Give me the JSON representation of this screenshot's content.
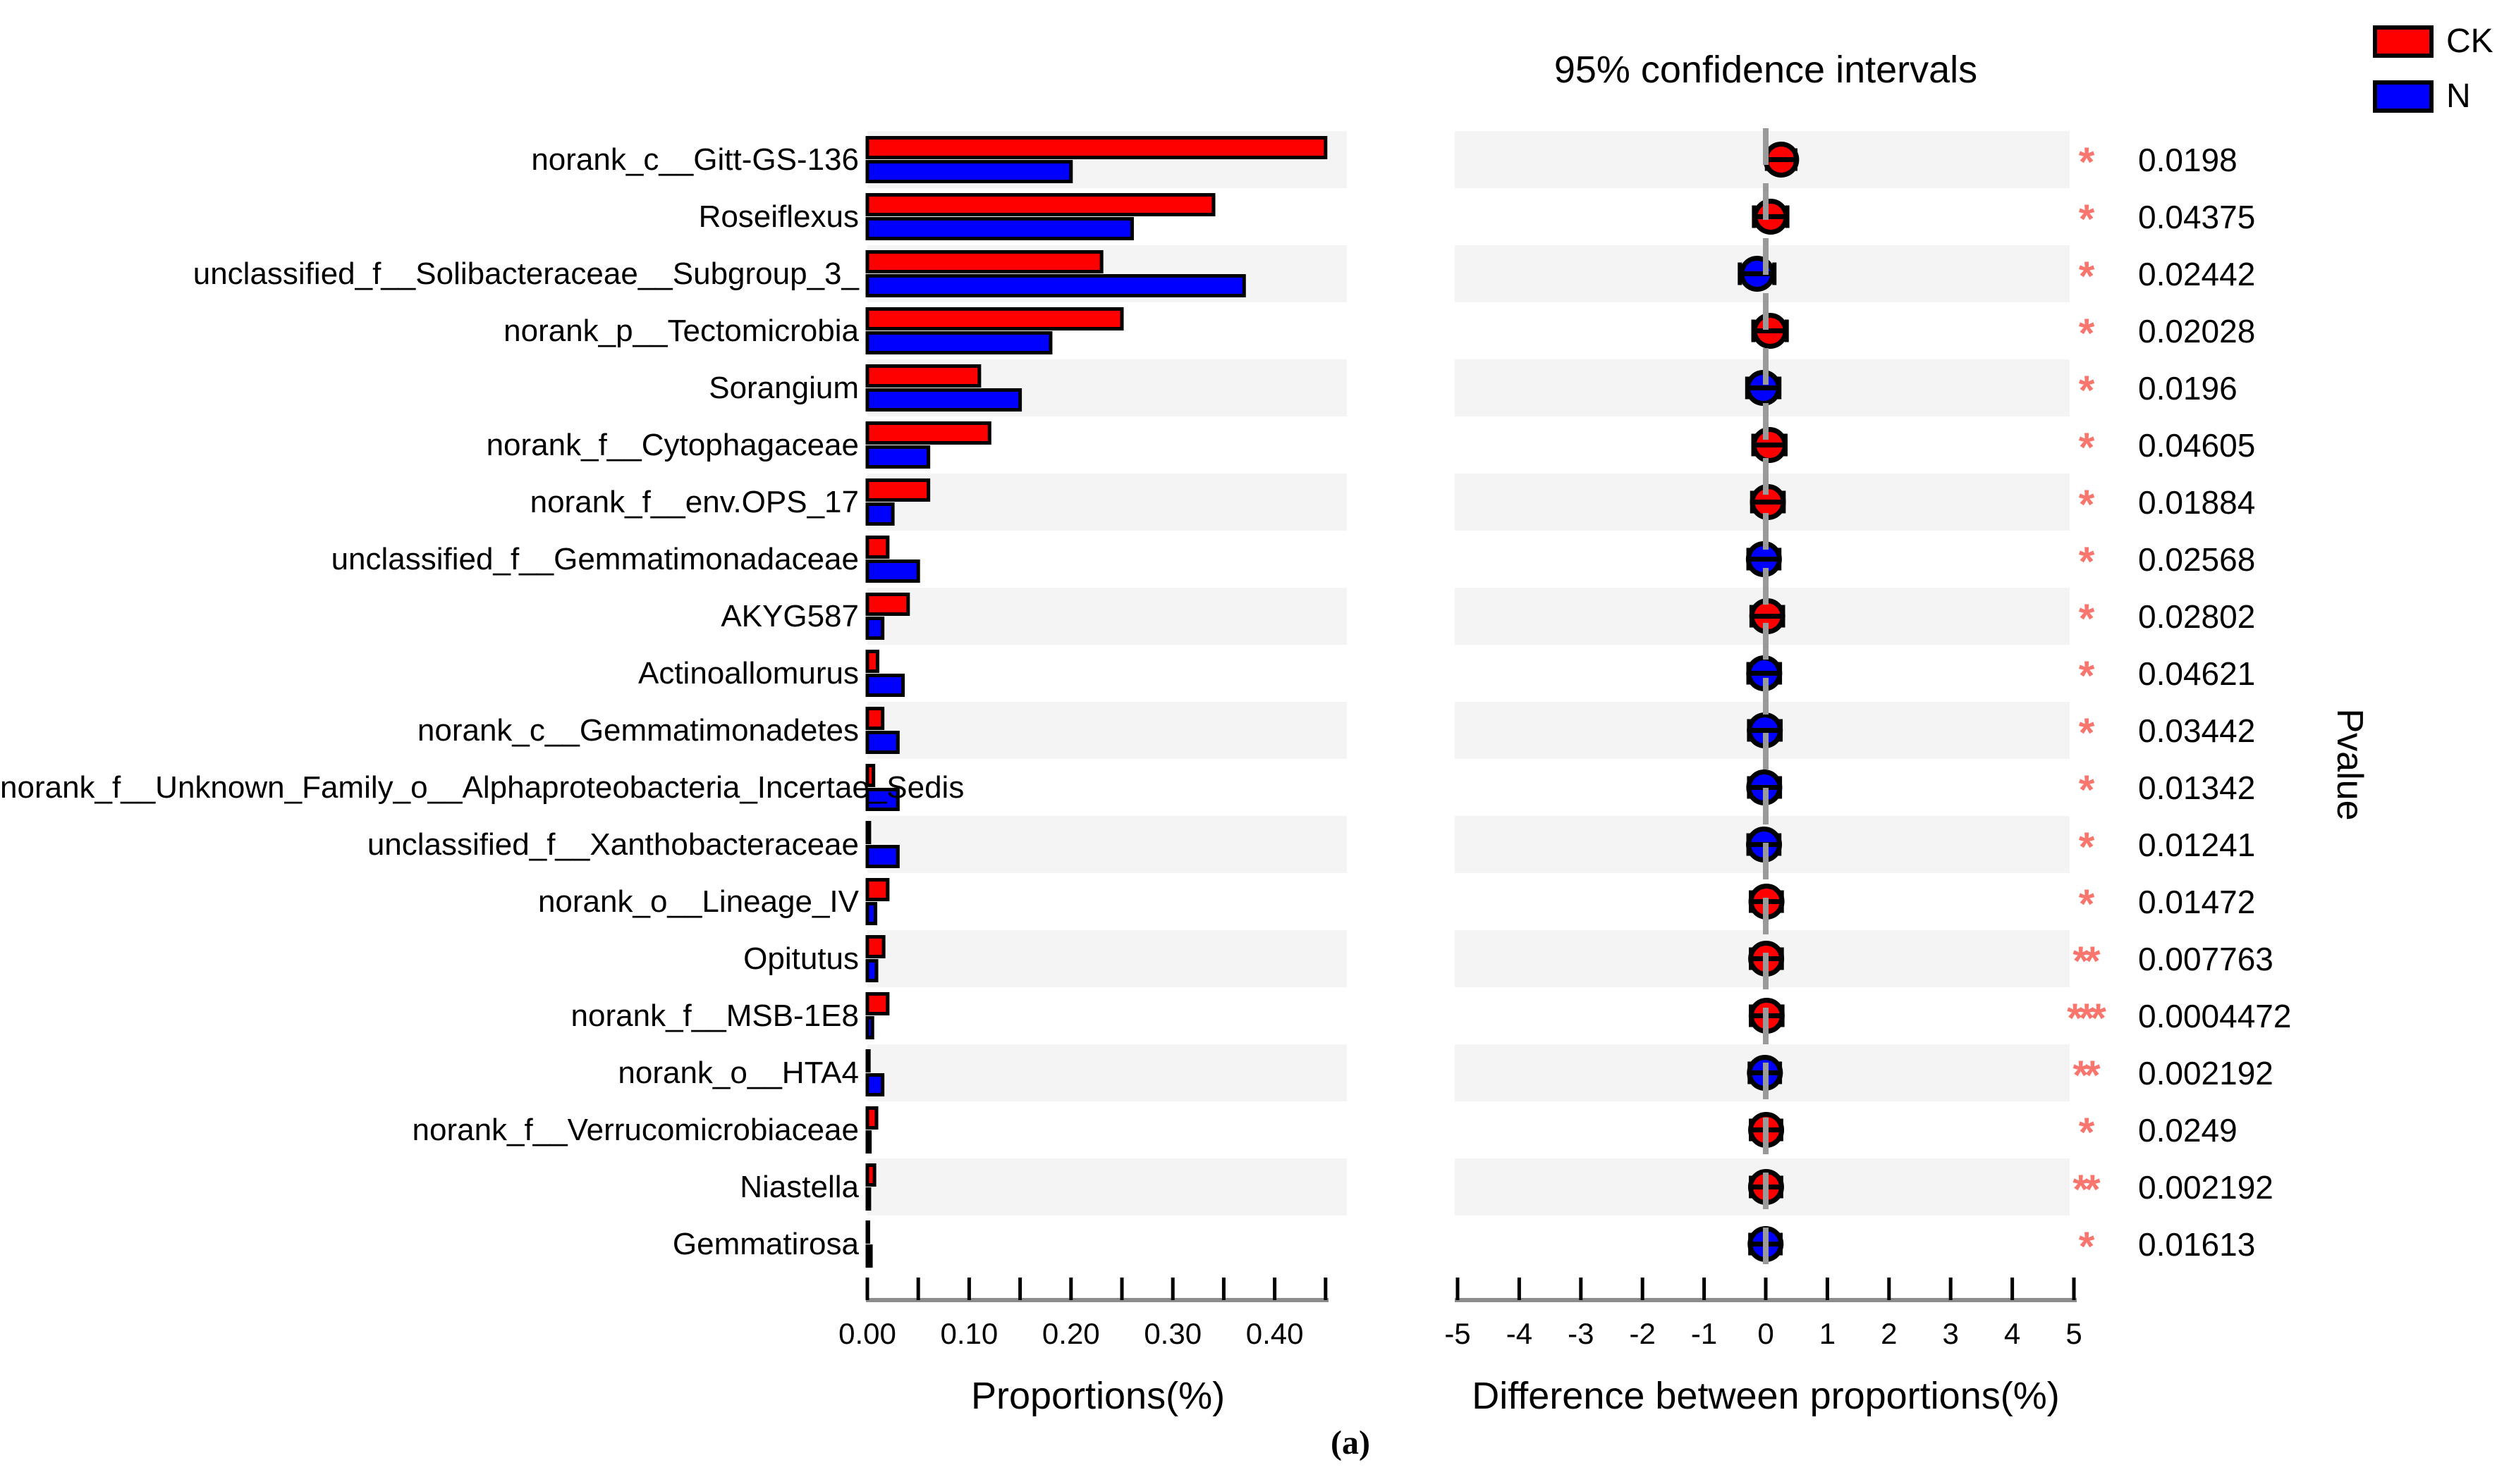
{
  "caption": "(a)",
  "pvalue_column_label": "Pvalue",
  "legend": {
    "items": [
      {
        "label": "CK",
        "color": "#ff0000"
      },
      {
        "label": "N",
        "color": "#0000ff"
      }
    ]
  },
  "colors": {
    "ck": "#ff0000",
    "n": "#0000ff",
    "sig": "#f8766d",
    "stripe": "#f4f4f4",
    "axis": "#8c8c8c",
    "zero_line": "#9a9a9a"
  },
  "chart_data": {
    "type": "bar",
    "subtype": "extended-error-bar-comparison",
    "series": [
      {
        "name": "CK",
        "color": "#ff0000"
      },
      {
        "name": "N",
        "color": "#0000ff"
      }
    ],
    "left_panel": {
      "xlabel": "Proportions(%)",
      "xlim": [
        0,
        0.45
      ],
      "tick_step": 0.05,
      "labeled_ticks": [
        {
          "v": 0.0,
          "label": "0.00"
        },
        {
          "v": 0.1,
          "label": "0.10"
        },
        {
          "v": 0.2,
          "label": "0.20"
        },
        {
          "v": 0.3,
          "label": "0.30"
        },
        {
          "v": 0.4,
          "label": "0.40"
        }
      ]
    },
    "right_panel": {
      "title": "95% confidence intervals",
      "xlabel": "Difference between proportions(%)",
      "xlim": [
        -5,
        5
      ],
      "labeled_ticks": [
        {
          "v": -5,
          "label": "-5"
        },
        {
          "v": -4,
          "label": "-4"
        },
        {
          "v": -3,
          "label": "-3"
        },
        {
          "v": -2,
          "label": "-2"
        },
        {
          "v": -1,
          "label": "-1"
        },
        {
          "v": 0,
          "label": "0"
        },
        {
          "v": 1,
          "label": "1"
        },
        {
          "v": 2,
          "label": "2"
        },
        {
          "v": 3,
          "label": "3"
        },
        {
          "v": 4,
          "label": "4"
        },
        {
          "v": 5,
          "label": "5"
        }
      ]
    },
    "rows": [
      {
        "label": "norank_c__Gitt-GS-136",
        "ck": 0.45,
        "n": 0.2,
        "diff": 0.25,
        "ci": [
          0.02,
          0.48
        ],
        "sig": "*",
        "pvalue": "0.0198"
      },
      {
        "label": "Roseiflexus",
        "ck": 0.34,
        "n": 0.26,
        "diff": 0.08,
        "ci": [
          -0.19,
          0.35
        ],
        "sig": "*",
        "pvalue": "0.04375"
      },
      {
        "label": "unclassified_f__Solibacteraceae__Subgroup_3_",
        "ck": 0.23,
        "n": 0.37,
        "diff": -0.14,
        "ci": [
          -0.42,
          0.14
        ],
        "sig": "*",
        "pvalue": "0.02442"
      },
      {
        "label": "norank_p__Tectomicrobia",
        "ck": 0.25,
        "n": 0.18,
        "diff": 0.07,
        "ci": [
          -0.2,
          0.34
        ],
        "sig": "*",
        "pvalue": "0.02028"
      },
      {
        "label": "Sorangium",
        "ck": 0.11,
        "n": 0.15,
        "diff": -0.04,
        "ci": [
          -0.3,
          0.22
        ],
        "sig": "*",
        "pvalue": "0.0196"
      },
      {
        "label": "norank_f__Cytophagaceae",
        "ck": 0.12,
        "n": 0.06,
        "diff": 0.06,
        "ci": [
          -0.2,
          0.32
        ],
        "sig": "*",
        "pvalue": "0.04605"
      },
      {
        "label": "norank_f__env.OPS_17",
        "ck": 0.06,
        "n": 0.025,
        "diff": 0.035,
        "ci": [
          -0.22,
          0.29
        ],
        "sig": "*",
        "pvalue": "0.01884"
      },
      {
        "label": "unclassified_f__Gemmatimonadaceae",
        "ck": 0.02,
        "n": 0.05,
        "diff": -0.03,
        "ci": [
          -0.28,
          0.22
        ],
        "sig": "*",
        "pvalue": "0.02568"
      },
      {
        "label": "AKYG587",
        "ck": 0.04,
        "n": 0.015,
        "diff": 0.025,
        "ci": [
          -0.23,
          0.28
        ],
        "sig": "*",
        "pvalue": "0.02802"
      },
      {
        "label": "Actinoallomurus",
        "ck": 0.01,
        "n": 0.035,
        "diff": -0.025,
        "ci": [
          -0.28,
          0.23
        ],
        "sig": "*",
        "pvalue": "0.04621"
      },
      {
        "label": "norank_c__Gemmatimonadetes",
        "ck": 0.015,
        "n": 0.03,
        "diff": -0.015,
        "ci": [
          -0.27,
          0.24
        ],
        "sig": "*",
        "pvalue": "0.03442"
      },
      {
        "label": "norank_f__Unknown_Family_o__Alphaproteobacteria_Incertae_Sedis",
        "ck": 0.006,
        "n": 0.03,
        "diff": -0.024,
        "ci": [
          -0.27,
          0.23
        ],
        "sig": "*",
        "pvalue": "0.01342"
      },
      {
        "label": "unclassified_f__Xanthobacteraceae",
        "ck": 0.002,
        "n": 0.03,
        "diff": -0.028,
        "ci": [
          -0.28,
          0.22
        ],
        "sig": "*",
        "pvalue": "0.01241"
      },
      {
        "label": "norank_o__Lineage_IV",
        "ck": 0.02,
        "n": 0.008,
        "diff": 0.012,
        "ci": [
          -0.24,
          0.26
        ],
        "sig": "*",
        "pvalue": "0.01472"
      },
      {
        "label": "Opitutus",
        "ck": 0.016,
        "n": 0.009,
        "diff": 0.007,
        "ci": [
          -0.24,
          0.26
        ],
        "sig": "**",
        "pvalue": "0.007763"
      },
      {
        "label": "norank_f__MSB-1E8",
        "ck": 0.02,
        "n": 0.005,
        "diff": 0.015,
        "ci": [
          -0.24,
          0.27
        ],
        "sig": "***",
        "pvalue": "0.0004472"
      },
      {
        "label": "norank_o__HTA4",
        "ck": 0.0015,
        "n": 0.015,
        "diff": -0.0135,
        "ci": [
          -0.26,
          0.23
        ],
        "sig": "**",
        "pvalue": "0.002192"
      },
      {
        "label": "norank_f__Verrucomicrobiaceae",
        "ck": 0.009,
        "n": 0.0025,
        "diff": 0.0065,
        "ci": [
          -0.24,
          0.25
        ],
        "sig": "*",
        "pvalue": "0.0249"
      },
      {
        "label": "Niastella",
        "ck": 0.007,
        "n": 0.002,
        "diff": 0.005,
        "ci": [
          -0.24,
          0.25
        ],
        "sig": "**",
        "pvalue": "0.002192"
      },
      {
        "label": "Gemmatirosa",
        "ck": 0.001,
        "n": 0.0035,
        "diff": -0.0025,
        "ci": [
          -0.25,
          0.24
        ],
        "sig": "*",
        "pvalue": "0.01613"
      }
    ]
  }
}
